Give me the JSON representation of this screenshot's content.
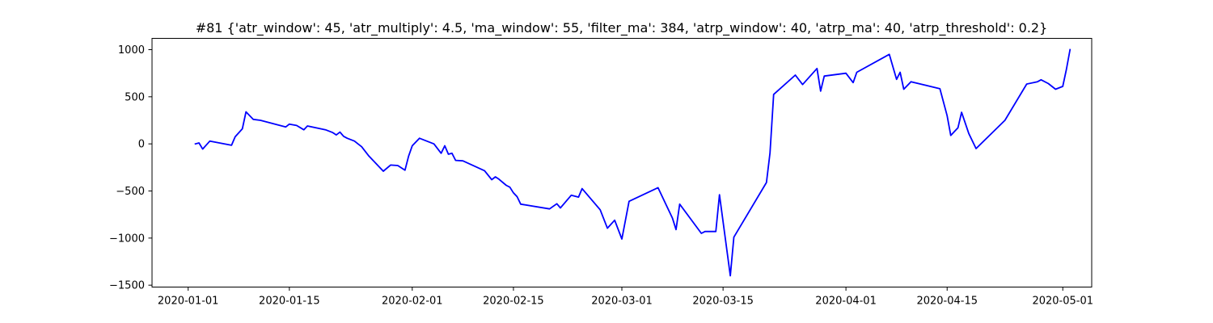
{
  "chart_data": {
    "type": "line",
    "title": "#81 {'atr_window': 45, 'atr_multiply': 4.5, 'ma_window': 55, 'filter_ma': 384, 'atrp_window': 40, 'atrp_ma': 40, 'atrp_threshold': 0.2}",
    "xlabel": "",
    "ylabel": "",
    "x_axis_type": "date",
    "xlim": [
      "2019-12-27",
      "2020-05-05"
    ],
    "ylim": [
      -1520,
      1120
    ],
    "x_ticks": [
      "2020-01-01",
      "2020-01-15",
      "2020-02-01",
      "2020-02-15",
      "2020-03-01",
      "2020-03-15",
      "2020-04-01",
      "2020-04-15",
      "2020-05-01"
    ],
    "y_ticks": [
      -1500,
      -1000,
      -500,
      0,
      500,
      1000
    ],
    "grid": false,
    "legend": "none",
    "series": [
      {
        "color": "#0000ff",
        "points": [
          [
            "2020-01-02",
            0
          ],
          [
            "2020-01-02 12:00",
            10
          ],
          [
            "2020-01-03",
            -55
          ],
          [
            "2020-01-04",
            30
          ],
          [
            "2020-01-07",
            -15
          ],
          [
            "2020-01-07 12:00",
            75
          ],
          [
            "2020-01-08 12:00",
            160
          ],
          [
            "2020-01-09",
            340
          ],
          [
            "2020-01-10",
            260
          ],
          [
            "2020-01-11",
            250
          ],
          [
            "2020-01-14 12:00",
            180
          ],
          [
            "2020-01-15",
            210
          ],
          [
            "2020-01-16",
            195
          ],
          [
            "2020-01-17",
            150
          ],
          [
            "2020-01-17 12:00",
            190
          ],
          [
            "2020-01-20",
            150
          ],
          [
            "2020-01-21",
            120
          ],
          [
            "2020-01-21 12:00",
            95
          ],
          [
            "2020-01-22",
            125
          ],
          [
            "2020-01-22 12:00",
            80
          ],
          [
            "2020-01-23",
            60
          ],
          [
            "2020-01-24",
            30
          ],
          [
            "2020-01-24 12:00",
            0
          ],
          [
            "2020-01-25",
            -30
          ],
          [
            "2020-01-26",
            -130
          ],
          [
            "2020-01-28",
            -290
          ],
          [
            "2020-01-29",
            -225
          ],
          [
            "2020-01-30",
            -230
          ],
          [
            "2020-01-31",
            -280
          ],
          [
            "2020-01-31 12:00",
            -130
          ],
          [
            "2020-02-01",
            -20
          ],
          [
            "2020-02-02",
            60
          ],
          [
            "2020-02-04",
            0
          ],
          [
            "2020-02-05",
            -100
          ],
          [
            "2020-02-05 12:00",
            -20
          ],
          [
            "2020-02-06",
            -110
          ],
          [
            "2020-02-06 12:00",
            -100
          ],
          [
            "2020-02-07",
            -175
          ],
          [
            "2020-02-08",
            -180
          ],
          [
            "2020-02-11",
            -285
          ],
          [
            "2020-02-12",
            -380
          ],
          [
            "2020-02-12 12:00",
            -350
          ],
          [
            "2020-02-13",
            -375
          ],
          [
            "2020-02-14",
            -440
          ],
          [
            "2020-02-14 12:00",
            -460
          ],
          [
            "2020-02-15",
            -520
          ],
          [
            "2020-02-15 12:00",
            -560
          ],
          [
            "2020-02-16",
            -640
          ],
          [
            "2020-02-20",
            -690
          ],
          [
            "2020-02-21",
            -635
          ],
          [
            "2020-02-21 12:00",
            -680
          ],
          [
            "2020-02-23",
            -545
          ],
          [
            "2020-02-24",
            -565
          ],
          [
            "2020-02-24 12:00",
            -475
          ],
          [
            "2020-02-27",
            -700
          ],
          [
            "2020-02-28",
            -895
          ],
          [
            "2020-02-29",
            -810
          ],
          [
            "2020-03-01",
            -1010
          ],
          [
            "2020-03-02",
            -610
          ],
          [
            "2020-03-06",
            -465
          ],
          [
            "2020-03-08",
            -790
          ],
          [
            "2020-03-08 12:00",
            -910
          ],
          [
            "2020-03-09",
            -640
          ],
          [
            "2020-03-12",
            -950
          ],
          [
            "2020-03-12 12:00",
            -930
          ],
          [
            "2020-03-14",
            -930
          ],
          [
            "2020-03-14 12:00",
            -540
          ],
          [
            "2020-03-16",
            -1400
          ],
          [
            "2020-03-16 12:00",
            -990
          ],
          [
            "2020-03-21",
            -410
          ],
          [
            "2020-03-21 12:00",
            -95
          ],
          [
            "2020-03-22",
            525
          ],
          [
            "2020-03-25",
            730
          ],
          [
            "2020-03-26",
            630
          ],
          [
            "2020-03-28",
            800
          ],
          [
            "2020-03-28 12:00",
            560
          ],
          [
            "2020-03-29",
            720
          ],
          [
            "2020-04-01",
            750
          ],
          [
            "2020-04-02",
            650
          ],
          [
            "2020-04-02 12:00",
            760
          ],
          [
            "2020-04-07",
            950
          ],
          [
            "2020-04-08",
            685
          ],
          [
            "2020-04-08 12:00",
            760
          ],
          [
            "2020-04-09",
            580
          ],
          [
            "2020-04-10",
            660
          ],
          [
            "2020-04-14",
            585
          ],
          [
            "2020-04-15",
            300
          ],
          [
            "2020-04-15 12:00",
            90
          ],
          [
            "2020-04-16 12:00",
            170
          ],
          [
            "2020-04-17",
            335
          ],
          [
            "2020-04-18",
            110
          ],
          [
            "2020-04-19",
            -50
          ],
          [
            "2020-04-23",
            250
          ],
          [
            "2020-04-26",
            635
          ],
          [
            "2020-04-27 12:00",
            660
          ],
          [
            "2020-04-28",
            680
          ],
          [
            "2020-04-29",
            640
          ],
          [
            "2020-04-30",
            580
          ],
          [
            "2020-05-01",
            610
          ],
          [
            "2020-05-01 12:00",
            790
          ],
          [
            "2020-05-02",
            1000
          ]
        ]
      }
    ]
  }
}
